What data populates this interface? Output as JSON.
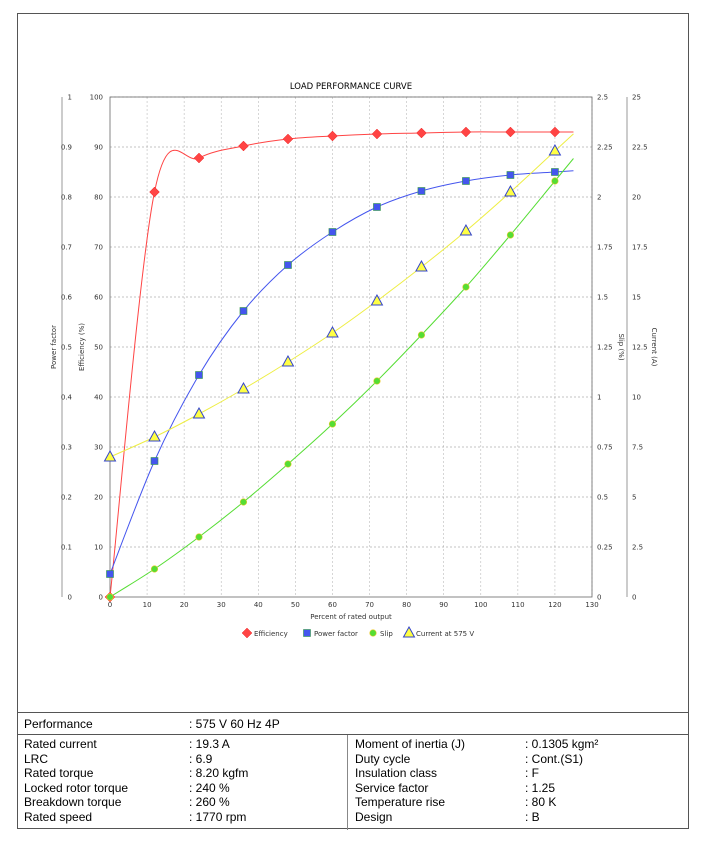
{
  "chart_data": {
    "type": "line",
    "title": "LOAD PERFORMANCE CURVE",
    "xlabel": "Percent of rated output",
    "xlim": [
      0,
      130
    ],
    "xticks": [
      "0",
      "10",
      "20",
      "30",
      "40",
      "50",
      "60",
      "70",
      "80",
      "90",
      "100",
      "110",
      "120",
      "130"
    ],
    "axes": {
      "power_factor": {
        "label": "Power factor",
        "lim": [
          0,
          1
        ],
        "ticks": [
          "0",
          "0.1",
          "0.2",
          "0.3",
          "0.4",
          "0.5",
          "0.6",
          "0.7",
          "0.8",
          "0.9",
          "1"
        ]
      },
      "efficiency": {
        "label": "Efficiency (%)",
        "lim": [
          0,
          100
        ],
        "ticks": [
          "0",
          "10",
          "20",
          "30",
          "40",
          "50",
          "60",
          "70",
          "80",
          "90",
          "100"
        ]
      },
      "slip": {
        "label": "Slip (%)",
        "lim": [
          0,
          2.5
        ],
        "ticks": [
          "0",
          "0.25",
          "0.5",
          "0.75",
          "1",
          "1.25",
          "1.5",
          "1.75",
          "2",
          "2.25",
          "2.5"
        ]
      },
      "current": {
        "label": "Current (A)",
        "lim": [
          0,
          25
        ],
        "ticks": [
          "0",
          "2.5",
          "5",
          "7.5",
          "10",
          "12.5",
          "15",
          "17.5",
          "20",
          "22.5",
          "25"
        ]
      }
    },
    "x": [
      0,
      12,
      24,
      36,
      48,
      60,
      72,
      84,
      96,
      108,
      120
    ],
    "series": [
      {
        "name": "Efficiency",
        "axis": "efficiency",
        "color": "#ff4444",
        "marker": "diamond",
        "values": [
          0,
          81,
          87.8,
          90.2,
          91.6,
          92.2,
          92.6,
          92.8,
          93,
          93,
          93
        ]
      },
      {
        "name": "Power factor",
        "axis": "power_factor",
        "color": "#4455ee",
        "marker": "square",
        "values": [
          0.046,
          0.272,
          0.444,
          0.572,
          0.664,
          0.73,
          0.78,
          0.812,
          0.832,
          0.844,
          0.85
        ]
      },
      {
        "name": "Slip",
        "axis": "slip",
        "color": "#55dd33",
        "marker": "circle",
        "values": [
          0,
          0.14,
          0.3,
          0.475,
          0.665,
          0.865,
          1.08,
          1.31,
          1.55,
          1.81,
          2.08
        ]
      },
      {
        "name": "Current at 575 V",
        "axis": "current",
        "color": "#ffff44",
        "marker": "triangle",
        "values": [
          7.0,
          8.0,
          9.15,
          10.4,
          11.75,
          13.2,
          14.8,
          16.5,
          18.3,
          20.25,
          22.3
        ]
      }
    ]
  },
  "table": {
    "performance_label": "Performance",
    "performance_value": ": 575 V 60 Hz 4P",
    "left": [
      {
        "label": "Rated current",
        "value": ": 19.3 A"
      },
      {
        "label": "LRC",
        "value": ": 6.9"
      },
      {
        "label": "Rated torque",
        "value": ": 8.20 kgfm"
      },
      {
        "label": "Locked rotor torque",
        "value": ": 240 %"
      },
      {
        "label": "Breakdown torque",
        "value": ": 260 %"
      },
      {
        "label": "Rated speed",
        "value": ": 1770 rpm"
      }
    ],
    "right": [
      {
        "label": "Moment of inertia (J)",
        "value": ": 0.1305 kgm²"
      },
      {
        "label": "Duty cycle",
        "value": ": Cont.(S1)"
      },
      {
        "label": "Insulation class",
        "value": ": F"
      },
      {
        "label": "Service factor",
        "value": ": 1.25"
      },
      {
        "label": "Temperature rise",
        "value": ": 80 K"
      },
      {
        "label": "Design",
        "value": ": B"
      }
    ]
  }
}
